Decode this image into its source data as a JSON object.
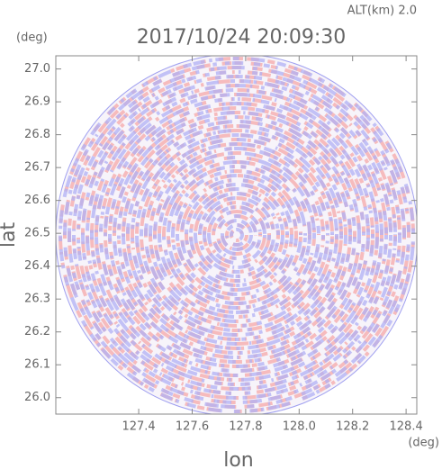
{
  "chart_data": {
    "type": "radar-ppi",
    "title": "2017/10/24 20:09:30",
    "subtitle": "ALT(km) 2.0",
    "x_label": "lon",
    "y_label": "lat",
    "x_unit": "(deg)",
    "y_unit": "(deg)",
    "xlim": [
      127.09,
      128.44
    ],
    "ylim": [
      25.95,
      27.04
    ],
    "xticks": [
      127.4,
      127.6,
      127.8,
      {
        "value": 128,
        "label": "128.0"
      },
      128.2,
      128.4
    ],
    "yticks": [
      {
        "value": 26,
        "label": "26.0"
      },
      26.1,
      26.2,
      26.3,
      26.4,
      26.5,
      26.6,
      26.7,
      26.8,
      26.9,
      {
        "value": 27,
        "label": "27.0"
      }
    ]
  }
}
